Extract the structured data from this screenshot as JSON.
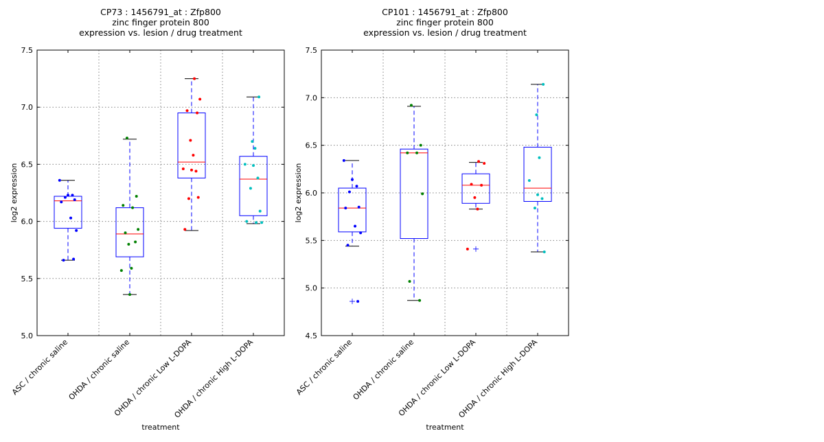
{
  "colors": {
    "box": "#0000ff",
    "median": "#ff0000",
    "cap": "#000000",
    "grid": "#808080",
    "groups": [
      "#0000ff",
      "#008000",
      "#ff0000",
      "#00bfbf"
    ]
  },
  "chart_data": [
    {
      "type": "box",
      "title": [
        "CP73 : 1456791_at : Zfp800",
        "zinc finger protein 800",
        "expression vs. lesion / drug treatment"
      ],
      "xlabel": "treatment",
      "ylabel": "log2 expression",
      "ylim": [
        5.0,
        7.5
      ],
      "yticks": [
        "5.0",
        "5.5",
        "6.0",
        "6.5",
        "7.0",
        "7.5"
      ],
      "grid": true,
      "categories": [
        "ASC / chronic saline",
        "OHDA / chronic saline",
        "OHDA / chronic Low L-DOPA",
        "OHDA / chronic High L-DOPA"
      ],
      "boxes": [
        {
          "whisker_low": 5.66,
          "q1": 5.94,
          "median": 6.18,
          "q3": 6.22,
          "whisker_high": 6.36,
          "fliers": [],
          "points": [
            6.36,
            6.23,
            6.23,
            6.21,
            6.19,
            6.17,
            6.03,
            5.92,
            5.66,
            5.67
          ]
        },
        {
          "whisker_low": 5.36,
          "q1": 5.69,
          "median": 5.89,
          "q3": 6.12,
          "whisker_high": 6.72,
          "fliers": [],
          "points": [
            6.73,
            6.22,
            6.14,
            6.12,
            5.93,
            5.9,
            5.82,
            5.8,
            5.59,
            5.57,
            5.36
          ]
        },
        {
          "whisker_low": 5.92,
          "q1": 6.38,
          "median": 6.52,
          "q3": 6.95,
          "whisker_high": 7.25,
          "fliers": [],
          "points": [
            7.25,
            7.07,
            6.97,
            6.95,
            6.71,
            6.58,
            6.46,
            6.45,
            6.44,
            6.2,
            6.21,
            5.93
          ]
        },
        {
          "whisker_low": 5.98,
          "q1": 6.05,
          "median": 6.37,
          "q3": 6.57,
          "whisker_high": 7.09,
          "fliers": [],
          "points": [
            7.09,
            6.7,
            6.64,
            6.5,
            6.49,
            6.38,
            6.29,
            6.09,
            6.0,
            5.99,
            5.99
          ]
        }
      ]
    },
    {
      "type": "box",
      "title": [
        "CP101 : 1456791_at : Zfp800",
        "zinc finger protein 800",
        "expression vs. lesion / drug treatment"
      ],
      "xlabel": "treatment",
      "ylabel": "log2 expression",
      "ylim": [
        4.5,
        7.5
      ],
      "yticks": [
        "4.5",
        "5.0",
        "5.5",
        "6.0",
        "6.5",
        "7.0",
        "7.5"
      ],
      "grid": true,
      "categories": [
        "ASC / chronic saline",
        "OHDA / chronic saline",
        "OHDA / chronic Low L-DOPA",
        "OHDA / chronic High L-DOPA"
      ],
      "boxes": [
        {
          "whisker_low": 5.44,
          "q1": 5.59,
          "median": 5.84,
          "q3": 6.05,
          "whisker_high": 6.34,
          "fliers": [
            4.86
          ],
          "points": [
            6.34,
            6.14,
            6.07,
            6.01,
            5.85,
            5.84,
            5.65,
            5.58,
            5.45,
            4.86
          ]
        },
        {
          "whisker_low": 4.87,
          "q1": 5.52,
          "median": 6.42,
          "q3": 6.46,
          "whisker_high": 6.91,
          "fliers": [],
          "points": [
            6.92,
            6.5,
            6.42,
            6.42,
            5.99,
            5.07,
            4.87
          ]
        },
        {
          "whisker_low": 5.83,
          "q1": 5.89,
          "median": 6.08,
          "q3": 6.2,
          "whisker_high": 6.32,
          "fliers": [
            5.41
          ],
          "points": [
            6.33,
            6.31,
            6.09,
            6.08,
            5.95,
            5.83,
            5.41
          ]
        },
        {
          "whisker_low": 5.38,
          "q1": 5.91,
          "median": 6.05,
          "q3": 6.48,
          "whisker_high": 7.14,
          "fliers": [],
          "points": [
            7.14,
            6.82,
            6.37,
            6.13,
            5.98,
            5.94,
            5.84,
            5.38
          ]
        }
      ]
    }
  ]
}
